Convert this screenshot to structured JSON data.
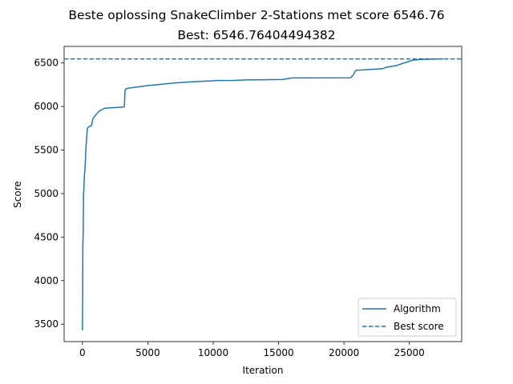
{
  "chart_data": {
    "type": "line",
    "title": "Beste oplossing SnakeClimber 2-Stations met score 6546.76",
    "subtitle": "Best: 6546.76404494382",
    "xlabel": "Iteration",
    "ylabel": "Score",
    "xlim": [
      -1400,
      29000
    ],
    "ylim": [
      3300,
      6690
    ],
    "xticks": [
      0,
      5000,
      10000,
      15000,
      20000,
      25000
    ],
    "yticks": [
      3500,
      4000,
      4500,
      5000,
      5500,
      6000,
      6500
    ],
    "grid": false,
    "legend_position": "lower-right",
    "series": [
      {
        "name": "Algorithm",
        "style": "solid",
        "color": "#1f77b4",
        "x": [
          0,
          20,
          30,
          40,
          60,
          80,
          100,
          150,
          200,
          280,
          380,
          500,
          700,
          800,
          1000,
          1300,
          1700,
          2200,
          2700,
          3200,
          3260,
          3300,
          3500,
          5000,
          7000,
          8500,
          10000,
          10200,
          11600,
          12500,
          14000,
          15300,
          15900,
          16100,
          20500,
          20700,
          20900,
          22000,
          23000,
          23200,
          24000,
          25200,
          25800,
          26500,
          27600
        ],
        "y": [
          3430,
          3900,
          4380,
          4450,
          4550,
          5000,
          5020,
          5200,
          5300,
          5550,
          5750,
          5770,
          5780,
          5860,
          5900,
          5950,
          5980,
          5985,
          5990,
          5995,
          6180,
          6200,
          6210,
          6240,
          6270,
          6285,
          6295,
          6298,
          6300,
          6305,
          6308,
          6310,
          6325,
          6328,
          6330,
          6360,
          6415,
          6425,
          6435,
          6450,
          6470,
          6530,
          6540,
          6543,
          6546.76
        ]
      },
      {
        "name": "Best score",
        "style": "dashed",
        "color": "#1f77b4",
        "y_constant": 6546.76404494382
      }
    ]
  }
}
